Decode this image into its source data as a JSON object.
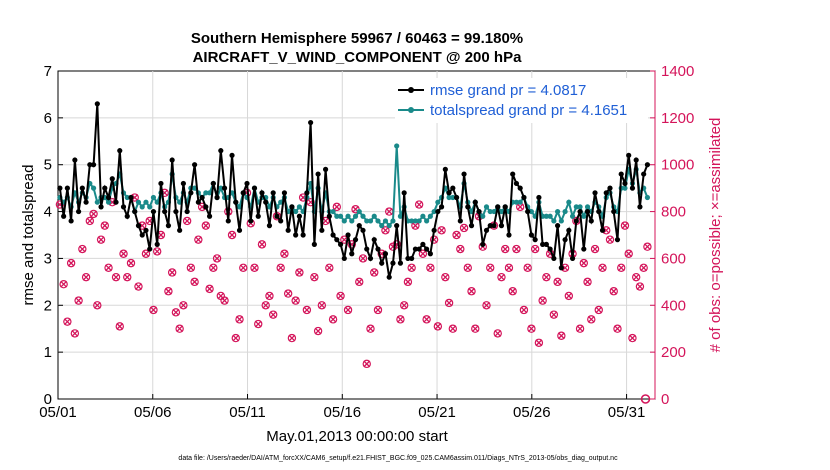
{
  "chart_data": {
    "type": "line",
    "title_line1": "Southern Hemisphere 59967 / 60463 = 99.180%",
    "title_line2": "AIRCRAFT_V_WIND_COMPONENT @ 200 hPa",
    "xlabel": "May.01,2013 00:00:00 start",
    "ylabel_left": "rmse and totalspread",
    "ylabel_right": "# of obs: o=possible; ×=assimilated",
    "footer": "data file: /Users/raeder/DAI/ATM_forcXX/CAM6_setup/f.e21.FHIST_BGC.f09_025.CAM6assim.011/Diags_NTrS_2013-05/obs_diag_output.nc",
    "xlim": [
      0,
      31.5
    ],
    "ylim_left": [
      0,
      7
    ],
    "ylim_right": [
      0,
      1400
    ],
    "x_ticks": [
      0,
      5,
      10,
      15,
      20,
      25,
      30
    ],
    "x_tick_labels": [
      "05/01",
      "05/06",
      "05/11",
      "05/16",
      "05/21",
      "05/26",
      "05/31"
    ],
    "y_left_ticks": [
      "0",
      "1",
      "2",
      "3",
      "4",
      "5",
      "6",
      "7"
    ],
    "y_right_ticks": [
      "0",
      "200",
      "400",
      "600",
      "800",
      "1000",
      "1200",
      "1400"
    ],
    "legend": [
      {
        "label": "rmse grand pr = 4.0817",
        "color": "#000000"
      },
      {
        "label": "totalspread grand pr = 4.1651",
        "color": "#1a8a8a"
      }
    ],
    "series": [
      {
        "name": "rmse",
        "color": "#000000",
        "values": [
          4.5,
          3.9,
          4.5,
          3.8,
          5.1,
          4.0,
          4.5,
          4.2,
          5.0,
          5.0,
          6.3,
          4.1,
          4.5,
          4.3,
          4.7,
          4.2,
          5.3,
          4.1,
          3.9,
          4.3,
          4.0,
          3.7,
          3.5,
          3.6,
          3.2,
          4.0,
          3.3,
          4.6,
          4.0,
          3.7,
          5.1,
          4.0,
          3.6,
          4.6,
          4.0,
          4.4,
          5.0,
          4.2,
          4.3,
          4.1,
          3.9,
          4.6,
          4.3,
          5.3,
          4.5,
          3.8,
          5.2,
          4.2,
          3.6,
          4.4,
          4.6,
          3.8,
          4.5,
          3.9,
          4.4,
          4.2,
          3.7,
          4.4,
          3.9,
          3.8,
          4.4,
          3.6,
          4.1,
          3.5,
          3.9,
          3.5,
          4.4,
          5.9,
          3.3,
          4.8,
          3.6,
          4.9,
          3.9,
          3.5,
          3.4,
          3.3,
          3.0,
          3.5,
          3.1,
          3.4,
          3.7,
          3.6,
          3.2,
          3.0,
          3.4,
          3.2,
          2.9,
          3.1,
          2.6,
          2.9,
          3.7,
          2.9,
          4.4,
          3.0,
          3.0,
          3.2,
          3.2,
          3.3,
          3.2,
          3.1,
          3.6,
          4.0,
          4.1,
          4.9,
          4.4,
          4.5,
          4.3,
          3.8,
          4.8,
          4.1,
          3.7,
          4.2,
          4.0,
          3.3,
          3.6,
          3.7,
          3.7,
          4.1,
          3.7,
          4.1,
          3.5,
          4.8,
          4.6,
          4.5,
          4.3,
          4.0,
          3.5,
          3.4,
          4.3,
          3.3,
          3.3,
          3.2,
          3.0,
          3.7,
          2.8,
          3.4,
          3.6,
          3.0,
          3.8,
          4.0,
          3.2,
          4.0,
          3.8,
          4.4,
          4.0,
          3.6,
          4.4,
          4.5,
          4.0,
          3.4,
          4.8,
          4.6,
          5.2,
          4.5,
          5.1,
          4.1,
          4.8,
          5.0
        ]
      },
      {
        "name": "totalspread",
        "color": "#1a8a8a",
        "values": [
          4.3,
          4.2,
          4.3,
          4.1,
          4.4,
          4.2,
          4.4,
          4.3,
          4.6,
          4.5,
          4.2,
          4.3,
          4.3,
          4.2,
          4.5,
          4.6,
          4.8,
          4.4,
          4.3,
          4.3,
          4.0,
          4.2,
          4.1,
          4.2,
          4.1,
          4.3,
          4.2,
          4.4,
          4.1,
          4.2,
          4.8,
          4.3,
          4.2,
          4.4,
          4.2,
          4.5,
          4.5,
          4.4,
          4.3,
          4.4,
          4.4,
          4.6,
          4.3,
          4.5,
          4.3,
          4.3,
          4.4,
          4.2,
          4.1,
          4.4,
          4.3,
          4.1,
          4.5,
          4.2,
          4.3,
          4.3,
          4.1,
          4.3,
          4.1,
          4.2,
          4.3,
          4.0,
          4.1,
          4.0,
          4.1,
          4.0,
          4.3,
          4.6,
          4.0,
          4.5,
          4.0,
          4.4,
          4.0,
          4.0,
          3.9,
          3.9,
          3.8,
          3.9,
          3.8,
          3.9,
          4.0,
          3.9,
          3.8,
          3.8,
          3.9,
          3.8,
          3.7,
          3.8,
          3.7,
          3.8,
          5.4,
          3.9,
          4.1,
          3.8,
          3.8,
          3.8,
          3.8,
          3.9,
          3.8,
          3.9,
          4.0,
          4.2,
          4.3,
          4.5,
          4.3,
          4.3,
          4.3,
          4.1,
          4.6,
          4.2,
          4.0,
          4.2,
          4.0,
          3.9,
          4.1,
          4.0,
          4.0,
          4.1,
          4.0,
          4.1,
          4.0,
          4.2,
          4.2,
          4.2,
          4.3,
          4.1,
          4.0,
          3.9,
          4.2,
          3.9,
          3.9,
          3.9,
          3.8,
          4.0,
          3.8,
          4.0,
          4.2,
          3.9,
          4.1,
          4.1,
          3.9,
          4.1,
          4.0,
          4.2,
          4.1,
          3.9,
          4.3,
          4.4,
          4.1,
          4.0,
          4.5,
          4.5,
          4.9,
          4.6,
          4.9,
          4.4,
          4.5,
          4.3
        ]
      },
      {
        "name": "obs possible / assimilated (right axis)",
        "color": "#d4145a",
        "values": [
          830,
          490,
          330,
          580,
          280,
          420,
          640,
          520,
          760,
          790,
          400,
          680,
          740,
          560,
          840,
          520,
          310,
          620,
          520,
          580,
          860,
          480,
          740,
          620,
          760,
          380,
          630,
          700,
          880,
          460,
          540,
          370,
          300,
          400,
          760,
          560,
          500,
          680,
          820,
          740,
          470,
          560,
          600,
          440,
          420,
          800,
          700,
          260,
          340,
          560,
          880,
          750,
          560,
          320,
          660,
          400,
          440,
          360,
          780,
          560,
          620,
          450,
          260,
          420,
          540,
          860,
          380,
          840,
          520,
          290,
          400,
          760,
          560,
          340,
          820,
          440,
          680,
          380,
          660,
          810,
          500,
          600,
          150,
          300,
          540,
          380,
          620,
          720,
          800,
          650,
          660,
          340,
          400,
          500,
          560,
          740,
          830,
          620,
          340,
          560,
          680,
          310,
          720,
          520,
          410,
          300,
          700,
          640,
          730,
          560,
          460,
          300,
          780,
          650,
          400,
          560,
          740,
          280,
          520,
          640,
          560,
          460,
          640,
          820,
          380,
          560,
          300,
          640,
          240,
          420,
          520,
          620,
          360,
          500,
          270,
          560,
          440,
          620,
          760,
          300,
          580,
          500,
          340,
          640,
          380,
          560,
          720,
          680,
          460,
          300,
          560,
          740,
          620,
          260,
          520,
          480,
          560,
          650
        ]
      }
    ]
  }
}
